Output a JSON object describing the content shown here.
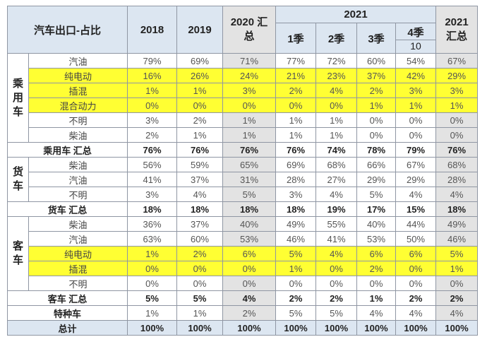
{
  "header": {
    "title": "汽车出口-占比",
    "columns": [
      "2018",
      "2019",
      "2020 汇总"
    ],
    "year": "2021",
    "quarters": [
      "1季",
      "2季",
      "3季",
      "4季"
    ],
    "quarter_note": "10",
    "total_column": "2021 汇总"
  },
  "groups": [
    {
      "name": "乘用车",
      "rows": [
        {
          "label": "汽油",
          "values": [
            "79%",
            "69%",
            "71%",
            "77%",
            "72%",
            "60%",
            "54%",
            "67%"
          ],
          "highlight": false
        },
        {
          "label": "纯电动",
          "values": [
            "16%",
            "26%",
            "24%",
            "21%",
            "23%",
            "37%",
            "42%",
            "29%"
          ],
          "highlight": true
        },
        {
          "label": "插混",
          "values": [
            "1%",
            "1%",
            "3%",
            "2%",
            "4%",
            "2%",
            "3%",
            "3%"
          ],
          "highlight": true
        },
        {
          "label": "混合动力",
          "values": [
            "0%",
            "0%",
            "0%",
            "0%",
            "0%",
            "1%",
            "1%",
            "1%"
          ],
          "highlight": true
        },
        {
          "label": "不明",
          "values": [
            "3%",
            "2%",
            "1%",
            "1%",
            "1%",
            "0%",
            "0%",
            "0%"
          ],
          "highlight": false
        },
        {
          "label": "柴油",
          "values": [
            "2%",
            "1%",
            "1%",
            "1%",
            "1%",
            "0%",
            "0%",
            "0%"
          ],
          "highlight": false
        }
      ],
      "subtotal": {
        "label": "乘用车 汇总",
        "values": [
          "76%",
          "76%",
          "76%",
          "76%",
          "74%",
          "78%",
          "79%",
          "76%"
        ]
      }
    },
    {
      "name": "货车",
      "rows": [
        {
          "label": "柴油",
          "values": [
            "56%",
            "59%",
            "65%",
            "69%",
            "68%",
            "66%",
            "67%",
            "68%"
          ],
          "highlight": false
        },
        {
          "label": "汽油",
          "values": [
            "41%",
            "37%",
            "31%",
            "28%",
            "27%",
            "29%",
            "29%",
            "28%"
          ],
          "highlight": false
        },
        {
          "label": "不明",
          "values": [
            "3%",
            "4%",
            "5%",
            "3%",
            "4%",
            "5%",
            "4%",
            "4%"
          ],
          "highlight": false
        }
      ],
      "subtotal": {
        "label": "货车 汇总",
        "values": [
          "18%",
          "18%",
          "18%",
          "18%",
          "19%",
          "17%",
          "15%",
          "18%"
        ]
      }
    },
    {
      "name": "客车",
      "rows": [
        {
          "label": "柴油",
          "values": [
            "36%",
            "37%",
            "40%",
            "49%",
            "55%",
            "40%",
            "44%",
            "49%"
          ],
          "highlight": false
        },
        {
          "label": "汽油",
          "values": [
            "63%",
            "60%",
            "53%",
            "46%",
            "41%",
            "53%",
            "50%",
            "46%"
          ],
          "highlight": false
        },
        {
          "label": "纯电动",
          "values": [
            "1%",
            "2%",
            "6%",
            "5%",
            "4%",
            "6%",
            "6%",
            "5%"
          ],
          "highlight": true
        },
        {
          "label": "插混",
          "values": [
            "0%",
            "0%",
            "0%",
            "1%",
            "0%",
            "2%",
            "0%",
            "1%"
          ],
          "highlight": true
        },
        {
          "label": "不明",
          "values": [
            "0%",
            "0%",
            "0%",
            "0%",
            "0%",
            "0%",
            "0%",
            "0%"
          ],
          "highlight": false
        }
      ],
      "subtotal": {
        "label": "客车 汇总",
        "values": [
          "5%",
          "5%",
          "4%",
          "2%",
          "2%",
          "1%",
          "2%",
          "2%"
        ]
      }
    }
  ],
  "special": {
    "label": "特种车",
    "values": [
      "1%",
      "1%",
      "2%",
      "5%",
      "5%",
      "4%",
      "4%",
      "4%"
    ]
  },
  "total": {
    "label": "总计",
    "values": [
      "100%",
      "100%",
      "100%",
      "100%",
      "100%",
      "100%",
      "100%",
      "100%"
    ]
  }
}
